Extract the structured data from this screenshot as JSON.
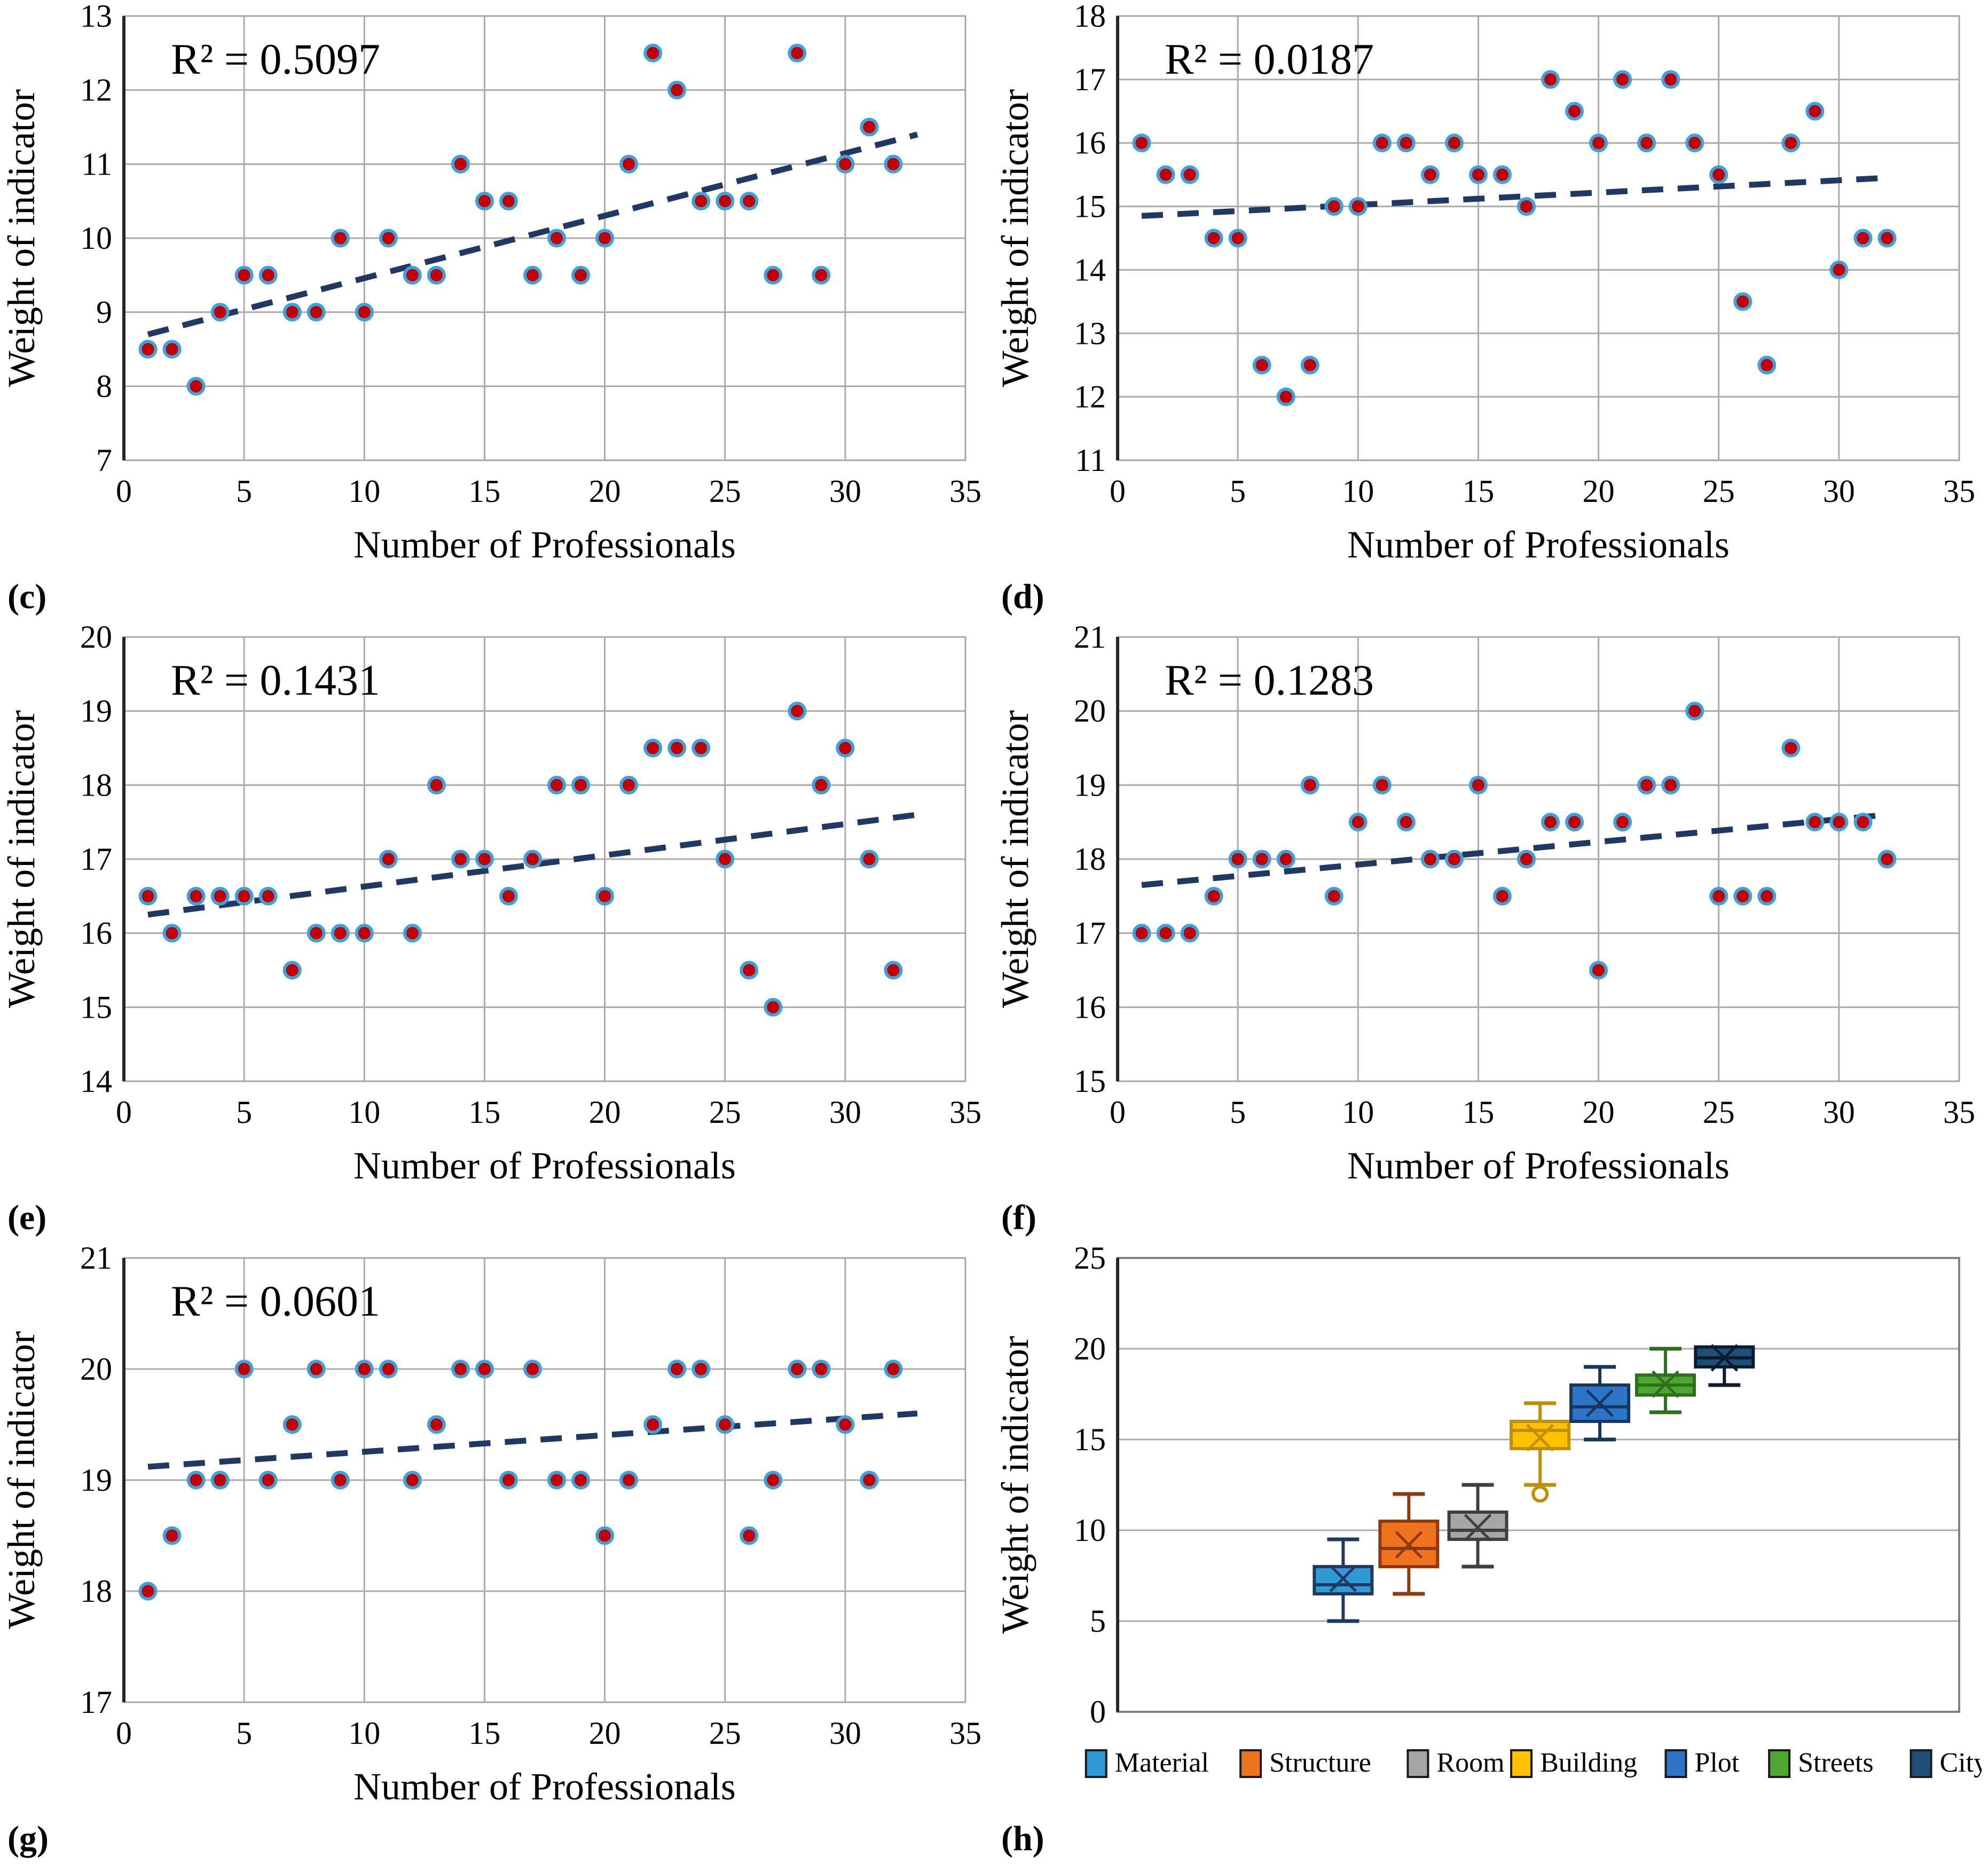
{
  "figure": {
    "background": "#ffffff",
    "text_color": "#000000"
  },
  "style": {
    "grid_color": "#ABABAB",
    "border_color": "#A6A6A6",
    "axis_color": "#262626",
    "marker_fill": "#C00000",
    "marker_edge": "#3FA0DC",
    "trend_color": "#1F3864"
  },
  "chart_data": [
    {
      "panel_label": "(c)",
      "type": "scatter",
      "r2_label": "R² = 0.5097",
      "xlabel": "Number of Professionals",
      "ylabel": "Weight of indicator",
      "xlim": [
        0,
        35
      ],
      "ylim": [
        7,
        13
      ],
      "xticks": [
        0,
        5,
        10,
        15,
        20,
        25,
        30,
        35
      ],
      "yticks": [
        7,
        8,
        9,
        10,
        11,
        12,
        13
      ],
      "x": [
        1,
        2,
        3,
        4,
        5,
        6,
        7,
        8,
        9,
        10,
        11,
        12,
        13,
        14,
        15,
        16,
        17,
        18,
        19,
        20,
        21,
        22,
        23,
        24,
        25,
        26,
        27,
        28,
        29,
        30,
        31,
        32
      ],
      "y": [
        8.5,
        8.5,
        8,
        9,
        9.5,
        9.5,
        9,
        9,
        10,
        9,
        10,
        9.5,
        9.5,
        11,
        10.5,
        10.5,
        9.5,
        10,
        9.5,
        10,
        11,
        12.5,
        12,
        10.5,
        10.5,
        10.5,
        9.5,
        12.5,
        9.5,
        11,
        11.5,
        11
      ],
      "trend": {
        "x1": 1,
        "y1": 8.7,
        "x2": 33,
        "y2": 11.4
      },
      "legend_position": "none",
      "grid": true
    },
    {
      "panel_label": "(d)",
      "type": "scatter",
      "r2_label": "R² = 0.0187",
      "xlabel": "Number of Professionals",
      "ylabel": "Weight of indicator",
      "xlim": [
        0,
        35
      ],
      "ylim": [
        11,
        18
      ],
      "xticks": [
        0,
        5,
        10,
        15,
        20,
        25,
        30,
        35
      ],
      "yticks": [
        11,
        12,
        13,
        14,
        15,
        16,
        17,
        18
      ],
      "x": [
        1,
        2,
        3,
        4,
        5,
        6,
        7,
        8,
        9,
        10,
        11,
        12,
        13,
        14,
        15,
        16,
        17,
        18,
        19,
        20,
        21,
        22,
        23,
        24,
        25,
        26,
        27,
        28,
        29,
        30,
        31,
        32
      ],
      "y": [
        16,
        15.5,
        15.5,
        14.5,
        14.5,
        12.5,
        12,
        12.5,
        15,
        15,
        16,
        16,
        15.5,
        16,
        15.5,
        15.5,
        15,
        17,
        16.5,
        16,
        17,
        16,
        17,
        16,
        15.5,
        13.5,
        12.5,
        16,
        16.5,
        14,
        14.5,
        14.5
      ],
      "trend": {
        "x1": 1,
        "y1": 14.85,
        "x2": 32,
        "y2": 15.45
      },
      "legend_position": "none",
      "grid": true
    },
    {
      "panel_label": "(e)",
      "type": "scatter",
      "r2_label": "R² = 0.1431",
      "xlabel": "Number of Professionals",
      "ylabel": "Weight of indicator",
      "xlim": [
        0,
        35
      ],
      "ylim": [
        14,
        20
      ],
      "xticks": [
        0,
        5,
        10,
        15,
        20,
        25,
        30,
        35
      ],
      "yticks": [
        14,
        15,
        16,
        17,
        18,
        19,
        20
      ],
      "x": [
        1,
        2,
        3,
        4,
        5,
        6,
        7,
        8,
        9,
        10,
        11,
        12,
        13,
        14,
        15,
        16,
        17,
        18,
        19,
        20,
        21,
        22,
        23,
        24,
        25,
        26,
        27,
        28,
        29,
        30,
        31,
        32
      ],
      "y": [
        16.5,
        16,
        16.5,
        16.5,
        16.5,
        16.5,
        15.5,
        16,
        16,
        16,
        17,
        16,
        18,
        17,
        17,
        16.5,
        17,
        18,
        18,
        16.5,
        18,
        18.5,
        18.5,
        18.5,
        17,
        15.5,
        15,
        19,
        18,
        18.5,
        17,
        15.5
      ],
      "trend": {
        "x1": 1,
        "y1": 16.25,
        "x2": 33,
        "y2": 17.6
      },
      "legend_position": "none",
      "grid": true
    },
    {
      "panel_label": "(f)",
      "type": "scatter",
      "r2_label": "R² = 0.1283",
      "xlabel": "Number of Professionals",
      "ylabel": "Weight of indicator",
      "xlim": [
        0,
        35
      ],
      "ylim": [
        15,
        21
      ],
      "xticks": [
        0,
        5,
        10,
        15,
        20,
        25,
        30,
        35
      ],
      "yticks": [
        15,
        16,
        17,
        18,
        19,
        20,
        21
      ],
      "x": [
        1,
        2,
        3,
        4,
        5,
        6,
        7,
        8,
        9,
        10,
        11,
        12,
        13,
        14,
        15,
        16,
        17,
        18,
        19,
        20,
        21,
        22,
        23,
        24,
        25,
        26,
        27,
        28,
        29,
        30,
        31,
        32
      ],
      "y": [
        17,
        17,
        17,
        17.5,
        18,
        18,
        18,
        19,
        17.5,
        18.5,
        19,
        18.5,
        18,
        18,
        19,
        17.5,
        18,
        18.5,
        18.5,
        16.5,
        18.5,
        19,
        19,
        20,
        17.5,
        17.5,
        17.5,
        19.5,
        18.5,
        18.5,
        18.5,
        18
      ],
      "trend": {
        "x1": 1,
        "y1": 17.65,
        "x2": 32,
        "y2": 18.6
      },
      "legend_position": "none",
      "grid": true
    },
    {
      "panel_label": "(g)",
      "type": "scatter",
      "r2_label": "R² = 0.0601",
      "xlabel": "Number of Professionals",
      "ylabel": "Weight of indicator",
      "xlim": [
        0,
        35
      ],
      "ylim": [
        17,
        21
      ],
      "xticks": [
        0,
        5,
        10,
        15,
        20,
        25,
        30,
        35
      ],
      "yticks": [
        17,
        18,
        19,
        20,
        21
      ],
      "x": [
        1,
        2,
        3,
        4,
        5,
        6,
        7,
        8,
        9,
        10,
        11,
        12,
        13,
        14,
        15,
        16,
        17,
        18,
        19,
        20,
        21,
        22,
        23,
        24,
        25,
        26,
        27,
        28,
        29,
        30,
        31,
        32
      ],
      "y": [
        18,
        18.5,
        19,
        19,
        20,
        19,
        19.5,
        20,
        19,
        20,
        20,
        19,
        19.5,
        20,
        20,
        19,
        20,
        19,
        19,
        18.5,
        19,
        19.5,
        20,
        20,
        19.5,
        18.5,
        19,
        20,
        20,
        19.5,
        19,
        20
      ],
      "trend": {
        "x1": 1,
        "y1": 19.12,
        "x2": 33,
        "y2": 19.6
      },
      "legend_position": "none",
      "grid": true
    },
    {
      "panel_label": "(h)",
      "type": "box",
      "ylabel": "Weight of indicator",
      "ylim": [
        0,
        25
      ],
      "yticks": [
        0,
        5,
        10,
        15,
        20,
        25
      ],
      "legend_position": "bottom",
      "grid": true,
      "series": [
        {
          "name": "Material",
          "fill": "#2E9BD6",
          "edge": "#1F3864",
          "min": 5,
          "q1": 6.5,
          "median": 7,
          "mean": 7.35,
          "q3": 8,
          "max": 9.5,
          "outliers": []
        },
        {
          "name": "Structure",
          "fill": "#F0731F",
          "edge": "#8C3A0E",
          "min": 6.5,
          "q1": 8,
          "median": 9,
          "mean": 9.2,
          "q3": 10.5,
          "max": 12,
          "outliers": []
        },
        {
          "name": "Room",
          "fill": "#A6A6A6",
          "edge": "#3F3F3F",
          "min": 8,
          "q1": 9.5,
          "median": 10,
          "mean": 10.15,
          "q3": 11,
          "max": 12.5,
          "outliers": []
        },
        {
          "name": "Building",
          "fill": "#FFC000",
          "edge": "#BF8F00",
          "min": 12.5,
          "q1": 14.5,
          "median": 15.5,
          "mean": 15.1,
          "q3": 16,
          "max": 17,
          "outliers": [
            12
          ]
        },
        {
          "name": "Plot",
          "fill": "#2E75C9",
          "edge": "#17375E",
          "min": 15,
          "q1": 16,
          "median": 16.8,
          "mean": 17,
          "q3": 18,
          "max": 19,
          "outliers": []
        },
        {
          "name": "Streets",
          "fill": "#4EA72E",
          "edge": "#2F6D1F",
          "min": 16.5,
          "q1": 17.45,
          "median": 18,
          "mean": 18.05,
          "q3": 18.55,
          "max": 20,
          "outliers": []
        },
        {
          "name": "City",
          "fill": "#1F4E79",
          "edge": "#0C1C2C",
          "min": 18,
          "q1": 19,
          "median": 19.5,
          "mean": 19.5,
          "q3": 20.1,
          "max": 20.1,
          "outliers": []
        }
      ]
    }
  ]
}
